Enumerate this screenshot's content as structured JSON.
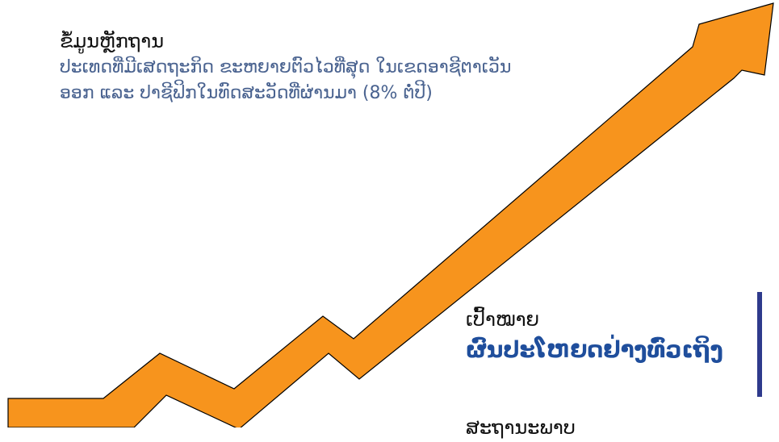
{
  "evidence": {
    "title": "ຂໍ້ມູນຫຼັກຖານ",
    "body": "ປະເທດທີ່ມີເສດຖະກິດ ຂະຫຍາຍຕົວໄວທີ່ສຸດ ໃນເຂດອາຊີຕາເວັນອອກ ແລະ ປາຊີຟິກໃນທົດສະວັດທີ່ຜ່ານມາ (8% ຕໍ່ປີ)"
  },
  "goal": {
    "label": "ເປົ້າໝາຍ",
    "value": "ຜົນປະໂຫຍດຢ່າງທົ່ວເຖິງ"
  },
  "bottom": {
    "text": "ສະຖານະພາບ"
  },
  "colors": {
    "arrow_fill": "#f7941d",
    "arrow_stroke": "#000000",
    "accent_bar": "#2e3a8c",
    "body_text": "#4a6390",
    "goal_text": "#1f4e9c"
  }
}
